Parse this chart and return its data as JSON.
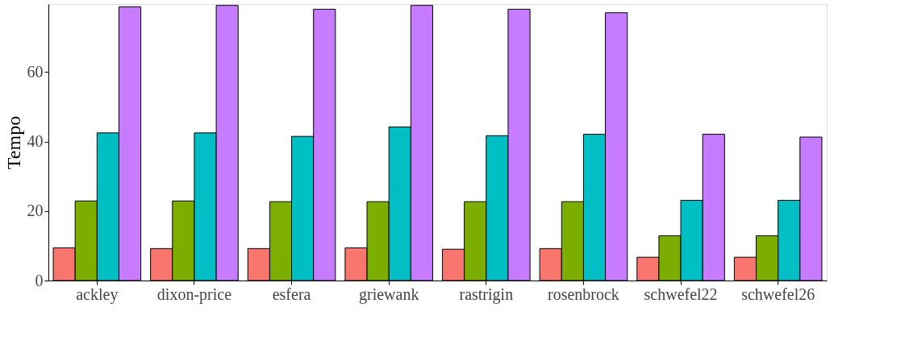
{
  "chart_data": {
    "type": "bar",
    "ylabel": "Tempo",
    "categories": [
      "ackley",
      "dixon-price",
      "esfera",
      "griewank",
      "rastrigin",
      "rosenbrock",
      "schwefel22",
      "schwefel26"
    ],
    "series": [
      {
        "color": "#f8766d",
        "values": [
          9.4,
          9.2,
          9.2,
          9.4,
          9.0,
          9.2,
          6.7,
          6.7
        ]
      },
      {
        "color": "#7cae00",
        "values": [
          22.9,
          22.9,
          22.7,
          22.7,
          22.7,
          22.7,
          12.9,
          12.9
        ]
      },
      {
        "color": "#00bfc4",
        "values": [
          42.5,
          42.5,
          41.5,
          44.2,
          41.7,
          42.1,
          23.1,
          23.1
        ]
      },
      {
        "color": "#c77cff",
        "values": [
          78.8,
          79.2,
          78.1,
          79.2,
          78.1,
          77.1,
          42.1,
          41.3
        ]
      }
    ],
    "ylim": [
      0,
      79.6
    ],
    "yticks": [
      0,
      20,
      40,
      60
    ],
    "grid": false,
    "legend": false
  }
}
